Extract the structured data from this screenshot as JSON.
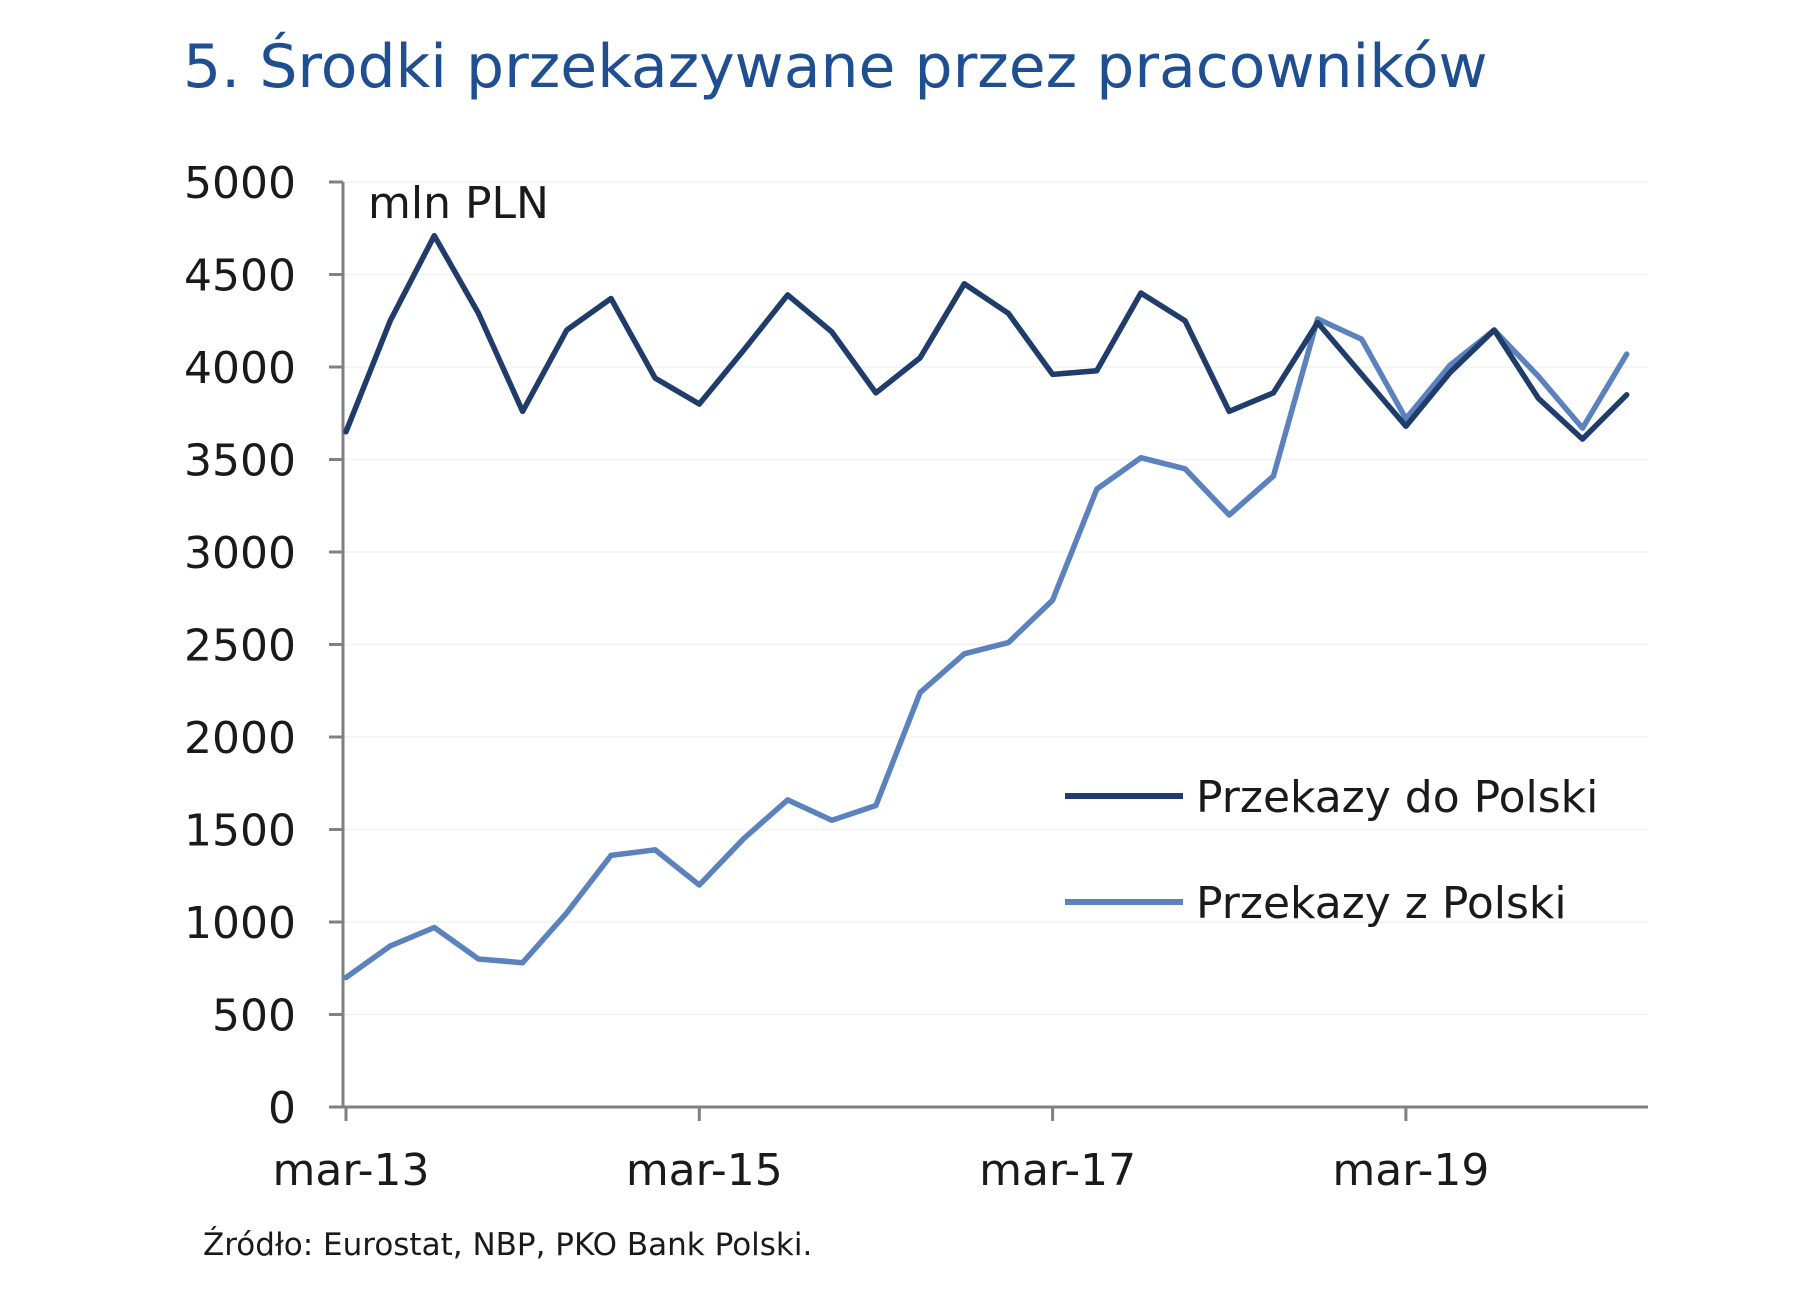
{
  "title": "5. Środki przekazywane przez pracowników",
  "source": "Źródło: Eurostat, NBP, PKO Bank Polski.",
  "colors": {
    "title": "#1f4f91",
    "series_dark": "#1f3c6b",
    "series_light": "#5b82bd",
    "axis": "#808080",
    "grid": "#f2f2f2"
  },
  "chart_data": {
    "type": "line",
    "unit_label": "mln PLN",
    "y_ticks": [
      "5000",
      "4500",
      "4000",
      "3500",
      "3000",
      "2500",
      "2000",
      "1500",
      "1000",
      "500",
      "0"
    ],
    "ylim": [
      0,
      5000
    ],
    "x_tick_labels": [
      "mar-13",
      "mar-15",
      "mar-17",
      "mar-19"
    ],
    "x": [
      "mar-13",
      "jun-13",
      "sep-13",
      "dec-13",
      "mar-14",
      "jun-14",
      "sep-14",
      "dec-14",
      "mar-15",
      "jun-15",
      "sep-15",
      "dec-15",
      "mar-16",
      "jun-16",
      "sep-16",
      "dec-16",
      "mar-17",
      "jun-17",
      "sep-17",
      "dec-17",
      "mar-18",
      "jun-18",
      "sep-18",
      "dec-18",
      "mar-19",
      "jun-19",
      "sep-19",
      "dec-19",
      "mar-20",
      "jun-20"
    ],
    "grid": true,
    "legend_position": "lower-right",
    "series": [
      {
        "name": "Przekazy do Polski",
        "color": "#1f3c6b",
        "values": [
          3650,
          4250,
          4710,
          4290,
          3760,
          4200,
          4370,
          3940,
          3800,
          4090,
          4390,
          4190,
          3860,
          4050,
          4450,
          4290,
          3960,
          3980,
          4400,
          4250,
          3760,
          3860,
          4240,
          3960,
          3680,
          3970,
          4200,
          3830,
          3610,
          3850
        ]
      },
      {
        "name": "Przekazy z Polski",
        "color": "#5b82bd",
        "values": [
          700,
          870,
          970,
          800,
          780,
          1050,
          1360,
          1390,
          1200,
          1450,
          1660,
          1550,
          1630,
          2240,
          2450,
          2510,
          2740,
          3340,
          3510,
          3450,
          3200,
          3410,
          4260,
          4150,
          3720,
          4010,
          4200,
          3950,
          3670,
          4070
        ]
      }
    ]
  }
}
